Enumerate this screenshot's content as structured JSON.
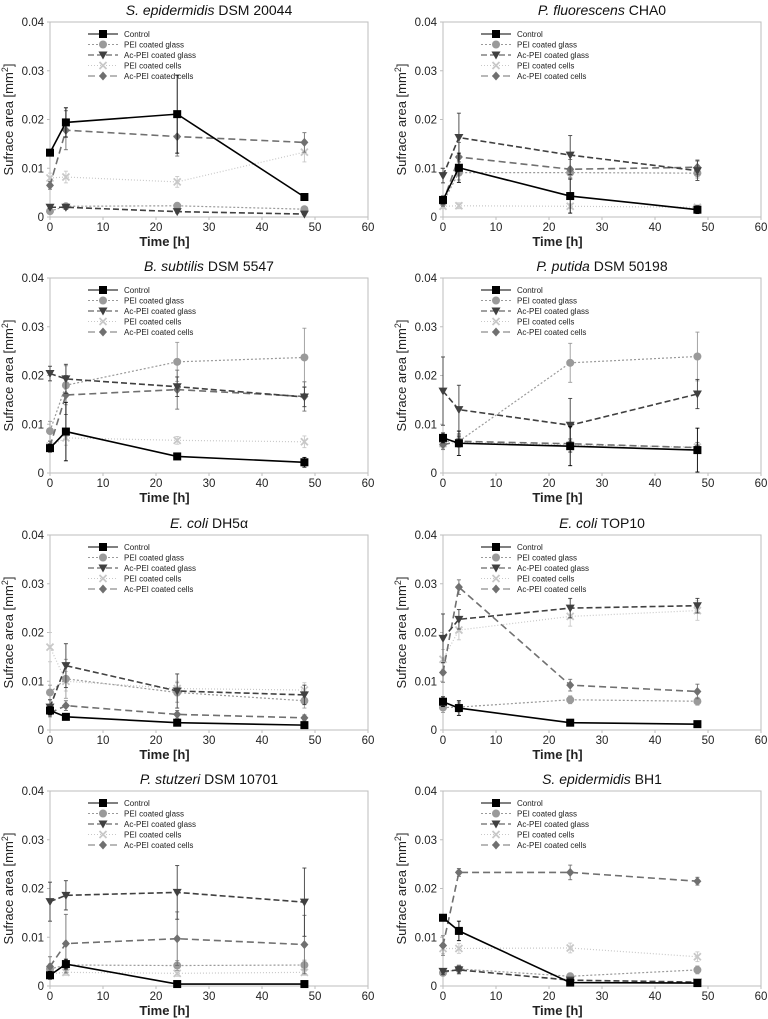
{
  "figure": {
    "ylabel": "Sufrace area [mm",
    "ylabel_sup": "2",
    "ylabel_close": "]",
    "xlabel": "Time [h]",
    "xticks": [
      "0",
      "10",
      "20",
      "30",
      "40",
      "50",
      "60"
    ],
    "yticks": [
      "0",
      "0.01",
      "0.02",
      "0.03",
      "0.04"
    ],
    "legend": [
      "Control",
      "PEI coated glass",
      "Ac-PEI coated glass",
      "PEI coated cells",
      "Ac-PEI coated cells"
    ],
    "series_styles": [
      {
        "name": "Control",
        "color": "#000000",
        "dash": "",
        "marker": "square",
        "width": 1.6
      },
      {
        "name": "PEI coated glass",
        "color": "#9a9a9a",
        "dash": "2,2",
        "marker": "circle",
        "width": 1.2
      },
      {
        "name": "Ac-PEI coated glass",
        "color": "#404040",
        "dash": "6,3",
        "marker": "triangle-down",
        "width": 1.6
      },
      {
        "name": "PEI coated cells",
        "color": "#c8c8c8",
        "dash": "1,2",
        "marker": "x",
        "width": 1.2
      },
      {
        "name": "Ac-PEI coated cells",
        "color": "#707070",
        "dash": "7,4",
        "marker": "diamond",
        "width": 1.6
      }
    ]
  },
  "chart_data": [
    {
      "type": "line",
      "title_italic": "S. epidermidis",
      "title_rest": " DSM 20044",
      "xlabel": "Time [h]",
      "ylabel": "Sufrace area [mm2]",
      "xlim": [
        0,
        60
      ],
      "ylim": [
        0,
        0.04
      ],
      "x": [
        0,
        3,
        24,
        48
      ],
      "series": [
        {
          "name": "Control",
          "values": [
            0.0132,
            0.0194,
            0.0211,
            0.0041
          ],
          "errors": [
            0.0005,
            0.003,
            0.008,
            0.0006
          ]
        },
        {
          "name": "PEI coated glass",
          "values": [
            0.0012,
            0.0022,
            0.0023,
            0.0016
          ],
          "errors": [
            0.0003,
            0.0005,
            0.0006,
            0.0004
          ]
        },
        {
          "name": "Ac-PEI coated glass",
          "values": [
            0.002,
            0.002,
            0.0011,
            0.0006
          ],
          "errors": [
            0.0003,
            0.0004,
            0.0003,
            0.0002
          ]
        },
        {
          "name": "PEI coated cells",
          "values": [
            0.008,
            0.0082,
            0.0072,
            0.0133
          ],
          "errors": [
            0.001,
            0.0012,
            0.0011,
            0.002
          ]
        },
        {
          "name": "Ac-PEI coated cells",
          "values": [
            0.0065,
            0.0178,
            0.0165,
            0.0153
          ],
          "errors": [
            0.0008,
            0.004,
            0.004,
            0.002
          ]
        }
      ]
    },
    {
      "type": "line",
      "title_italic": "P. fluorescens",
      "title_rest": " CHA0",
      "xlabel": "Time [h]",
      "ylabel": "Sufrace area [mm2]",
      "xlim": [
        0,
        60
      ],
      "ylim": [
        0,
        0.04
      ],
      "x": [
        0,
        3,
        24,
        48
      ],
      "series": [
        {
          "name": "Control",
          "values": [
            0.0035,
            0.0101,
            0.0043,
            0.0015
          ],
          "errors": [
            0.0008,
            0.003,
            0.0035,
            0.0008
          ]
        },
        {
          "name": "PEI coated glass",
          "values": [
            0.003,
            0.0091,
            0.0091,
            0.009
          ],
          "errors": [
            0.0008,
            0.0015,
            0.001,
            0.001
          ]
        },
        {
          "name": "Ac-PEI coated glass",
          "values": [
            0.0085,
            0.0163,
            0.0127,
            0.0095
          ],
          "errors": [
            0.0015,
            0.005,
            0.004,
            0.002
          ]
        },
        {
          "name": "PEI coated cells",
          "values": [
            0.0022,
            0.0023,
            0.0022,
            0.002
          ],
          "errors": [
            0.0005,
            0.0006,
            0.0005,
            0.0005
          ]
        },
        {
          "name": "Ac-PEI coated cells",
          "values": [
            0.003,
            0.0123,
            0.0098,
            0.0102
          ],
          "errors": [
            0.0008,
            0.003,
            0.002,
            0.0015
          ]
        }
      ]
    },
    {
      "type": "line",
      "title_italic": "B. subtilis",
      "title_rest": " DSM 5547",
      "xlabel": "Time [h]",
      "ylabel": "Sufrace area [mm2]",
      "xlim": [
        0,
        60
      ],
      "ylim": [
        0,
        0.04
      ],
      "x": [
        0,
        3,
        24,
        48
      ],
      "series": [
        {
          "name": "Control",
          "values": [
            0.0051,
            0.0085,
            0.0034,
            0.0022
          ],
          "errors": [
            0.0008,
            0.006,
            0.0005,
            0.001
          ]
        },
        {
          "name": "PEI coated glass",
          "values": [
            0.0086,
            0.018,
            0.0228,
            0.0237
          ],
          "errors": [
            0.002,
            0.004,
            0.004,
            0.006
          ]
        },
        {
          "name": "Ac-PEI coated glass",
          "values": [
            0.0204,
            0.0193,
            0.0177,
            0.0156
          ],
          "errors": [
            0.0015,
            0.003,
            0.002,
            0.002
          ]
        },
        {
          "name": "PEI coated cells",
          "values": [
            0.0055,
            0.0072,
            0.0067,
            0.0064
          ],
          "errors": [
            0.001,
            0.0015,
            0.0008,
            0.0012
          ]
        },
        {
          "name": "Ac-PEI coated cells",
          "values": [
            0.0055,
            0.016,
            0.0171,
            0.0157
          ],
          "errors": [
            0.001,
            0.004,
            0.004,
            0.003
          ]
        }
      ]
    },
    {
      "type": "line",
      "title_italic": "P. putida",
      "title_rest": " DSM 50198",
      "xlabel": "Time [h]",
      "ylabel": "Sufrace area [mm2]",
      "xlim": [
        0,
        60
      ],
      "ylim": [
        0,
        0.04
      ],
      "x": [
        0,
        3,
        24,
        48
      ],
      "series": [
        {
          "name": "Control",
          "values": [
            0.0072,
            0.0061,
            0.0055,
            0.0047
          ],
          "errors": [
            0.001,
            0.0025,
            0.004,
            0.0045
          ]
        },
        {
          "name": "PEI coated glass",
          "values": [
            0.0065,
            0.0065,
            0.0226,
            0.0239
          ],
          "errors": [
            0.001,
            0.0012,
            0.004,
            0.005
          ]
        },
        {
          "name": "Ac-PEI coated glass",
          "values": [
            0.0168,
            0.013,
            0.0098,
            0.0162
          ],
          "errors": [
            0.007,
            0.005,
            0.0055,
            0.003
          ]
        },
        {
          "name": "PEI coated cells",
          "values": [
            0.006,
            0.0063,
            0.0058,
            0.0053
          ],
          "errors": [
            0.001,
            0.001,
            0.001,
            0.001
          ]
        },
        {
          "name": "Ac-PEI coated cells",
          "values": [
            0.0058,
            0.0065,
            0.006,
            0.0052
          ],
          "errors": [
            0.001,
            0.001,
            0.001,
            0.001
          ]
        }
      ]
    },
    {
      "type": "line",
      "title_italic": "E. coli",
      "title_rest": " DH5α",
      "xlabel": "Time [h]",
      "ylabel": "Sufrace area [mm2]",
      "xlim": [
        0,
        60
      ],
      "ylim": [
        0,
        0.04
      ],
      "x": [
        0,
        3,
        24,
        48
      ],
      "series": [
        {
          "name": "Control",
          "values": [
            0.004,
            0.0027,
            0.0015,
            0.001
          ],
          "errors": [
            0.0008,
            0.0005,
            0.0004,
            0.0003
          ]
        },
        {
          "name": "PEI coated glass",
          "values": [
            0.0077,
            0.0105,
            0.0077,
            0.006
          ],
          "errors": [
            0.0015,
            0.004,
            0.002,
            0.0015
          ]
        },
        {
          "name": "Ac-PEI coated glass",
          "values": [
            0.0047,
            0.0132,
            0.008,
            0.0072
          ],
          "errors": [
            0.0015,
            0.0045,
            0.0035,
            0.002
          ]
        },
        {
          "name": "PEI coated cells",
          "values": [
            0.017,
            0.01,
            0.0085,
            0.0082
          ],
          "errors": [
            0.003,
            0.002,
            0.0015,
            0.0015
          ]
        },
        {
          "name": "Ac-PEI coated cells",
          "values": [
            0.0035,
            0.005,
            0.0032,
            0.0025
          ],
          "errors": [
            0.0008,
            0.001,
            0.0008,
            0.0006
          ]
        }
      ]
    },
    {
      "type": "line",
      "title_italic": "E. coli",
      "title_rest": " TOP10",
      "xlabel": "Time [h]",
      "ylabel": "Sufrace area [mm2]",
      "xlim": [
        0,
        60
      ],
      "ylim": [
        0,
        0.04
      ],
      "x": [
        0,
        3,
        24,
        48
      ],
      "series": [
        {
          "name": "Control",
          "values": [
            0.0058,
            0.0045,
            0.0015,
            0.0012
          ],
          "errors": [
            0.001,
            0.0015,
            0.0004,
            0.0004
          ]
        },
        {
          "name": "PEI coated glass",
          "values": [
            0.0046,
            0.0047,
            0.0062,
            0.0059
          ],
          "errors": [
            0.001,
            0.001,
            0.0008,
            0.0008
          ]
        },
        {
          "name": "Ac-PEI coated glass",
          "values": [
            0.0188,
            0.0227,
            0.025,
            0.0255
          ],
          "errors": [
            0.005,
            0.002,
            0.002,
            0.0015
          ]
        },
        {
          "name": "PEI coated cells",
          "values": [
            0.0145,
            0.0205,
            0.0233,
            0.0245
          ],
          "errors": [
            0.002,
            0.002,
            0.002,
            0.002
          ]
        },
        {
          "name": "Ac-PEI coated cells",
          "values": [
            0.0118,
            0.0293,
            0.0092,
            0.0079
          ],
          "errors": [
            0.002,
            0.0015,
            0.0012,
            0.0015
          ]
        }
      ]
    },
    {
      "type": "line",
      "title_italic": "P. stutzeri",
      "title_rest": " DSM 10701",
      "xlabel": "Time [h]",
      "ylabel": "Sufrace area [mm2]",
      "xlim": [
        0,
        60
      ],
      "ylim": [
        0,
        0.04
      ],
      "x": [
        0,
        3,
        24,
        48
      ],
      "series": [
        {
          "name": "Control",
          "values": [
            0.0022,
            0.0045,
            0.0004,
            0.0004
          ],
          "errors": [
            0.0008,
            0.001,
            0.0002,
            0.0002
          ]
        },
        {
          "name": "PEI coated glass",
          "values": [
            0.0035,
            0.0043,
            0.0042,
            0.0043
          ],
          "errors": [
            0.001,
            0.001,
            0.001,
            0.001
          ]
        },
        {
          "name": "Ac-PEI coated glass",
          "values": [
            0.0173,
            0.0186,
            0.0192,
            0.0172
          ],
          "errors": [
            0.004,
            0.003,
            0.0055,
            0.007
          ]
        },
        {
          "name": "PEI coated cells",
          "values": [
            0.0025,
            0.0028,
            0.0026,
            0.0028
          ],
          "errors": [
            0.0006,
            0.0006,
            0.0006,
            0.0006
          ]
        },
        {
          "name": "Ac-PEI coated cells",
          "values": [
            0.004,
            0.0087,
            0.0097,
            0.0085
          ],
          "errors": [
            0.002,
            0.006,
            0.0055,
            0.006
          ]
        }
      ]
    },
    {
      "type": "line",
      "title_italic": "S. epidermidis",
      "title_rest": " BH1",
      "xlabel": "Time [h]",
      "ylabel": "Sufrace area [mm2]",
      "xlim": [
        0,
        60
      ],
      "ylim": [
        0,
        0.04
      ],
      "x": [
        0,
        3,
        24,
        48
      ],
      "series": [
        {
          "name": "Control",
          "values": [
            0.014,
            0.0113,
            0.0007,
            0.0006
          ],
          "errors": [
            0.0005,
            0.002,
            0.0003,
            0.0003
          ]
        },
        {
          "name": "PEI coated glass",
          "values": [
            0.0027,
            0.0035,
            0.002,
            0.0033
          ],
          "errors": [
            0.0006,
            0.0008,
            0.0006,
            0.0008
          ]
        },
        {
          "name": "Ac-PEI coated glass",
          "values": [
            0.003,
            0.0033,
            0.0012,
            0.0008
          ],
          "errors": [
            0.0006,
            0.0008,
            0.0004,
            0.0003
          ]
        },
        {
          "name": "PEI coated cells",
          "values": [
            0.0077,
            0.0077,
            0.0078,
            0.006
          ],
          "errors": [
            0.001,
            0.001,
            0.001,
            0.001
          ]
        },
        {
          "name": "Ac-PEI coated cells",
          "values": [
            0.0083,
            0.0233,
            0.0233,
            0.0215
          ],
          "errors": [
            0.002,
            0.0008,
            0.0015,
            0.0008
          ]
        }
      ]
    }
  ]
}
